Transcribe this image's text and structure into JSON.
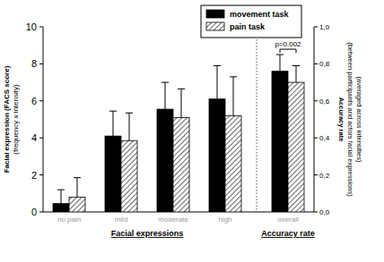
{
  "chart_data": {
    "type": "bar",
    "ylabel": [
      "Facial expression (FACS score)",
      "(frequency x intensity)"
    ],
    "y2label": [
      "Accuracy rate",
      "(between participants and actors facial expressions)",
      "(averaged across intensities)"
    ],
    "categories": [
      "no pain",
      "mild",
      "moderate",
      "high",
      "overall"
    ],
    "group_labels": [
      "Facial expressions",
      "Accuracy rate"
    ],
    "series": [
      {
        "name": "movement task",
        "color": "#000000",
        "marker": "solid",
        "values": [
          0.45,
          4.1,
          5.55,
          6.1,
          null
        ],
        "errors": [
          0.75,
          1.35,
          1.45,
          1.8,
          null
        ]
      },
      {
        "name": "pain task",
        "color": "#000000",
        "marker": "hatched",
        "values": [
          0.8,
          3.85,
          5.1,
          5.2,
          null
        ],
        "errors": [
          1.05,
          1.5,
          1.55,
          2.1,
          null
        ]
      },
      {
        "name": "movement task",
        "color": "#000000",
        "marker": "solid",
        "axis": "y2",
        "values": [
          null,
          null,
          null,
          null,
          0.76
        ],
        "errors": [
          null,
          null,
          null,
          null,
          0.09
        ]
      },
      {
        "name": "pain task",
        "color": "#000000",
        "marker": "hatched",
        "axis": "y2",
        "values": [
          null,
          null,
          null,
          null,
          0.7
        ],
        "errors": [
          null,
          null,
          null,
          null,
          0.09
        ]
      }
    ],
    "ylim": [
      0,
      10
    ],
    "yticks": [
      0,
      2,
      4,
      6,
      8,
      10
    ],
    "y2lim": [
      0,
      1
    ],
    "y2ticks": [
      {
        "value": 0,
        "label": "0,0"
      },
      {
        "value": 0.2,
        "label": "0,2"
      },
      {
        "value": 0.4,
        "label": "0,4"
      },
      {
        "value": 0.6,
        "label": "0,6"
      },
      {
        "value": 0.8,
        "label": "0,8"
      },
      {
        "value": 1,
        "label": "1,0"
      }
    ],
    "annotations": [
      {
        "text": "p=0.002"
      }
    ],
    "legend": "top-right"
  }
}
